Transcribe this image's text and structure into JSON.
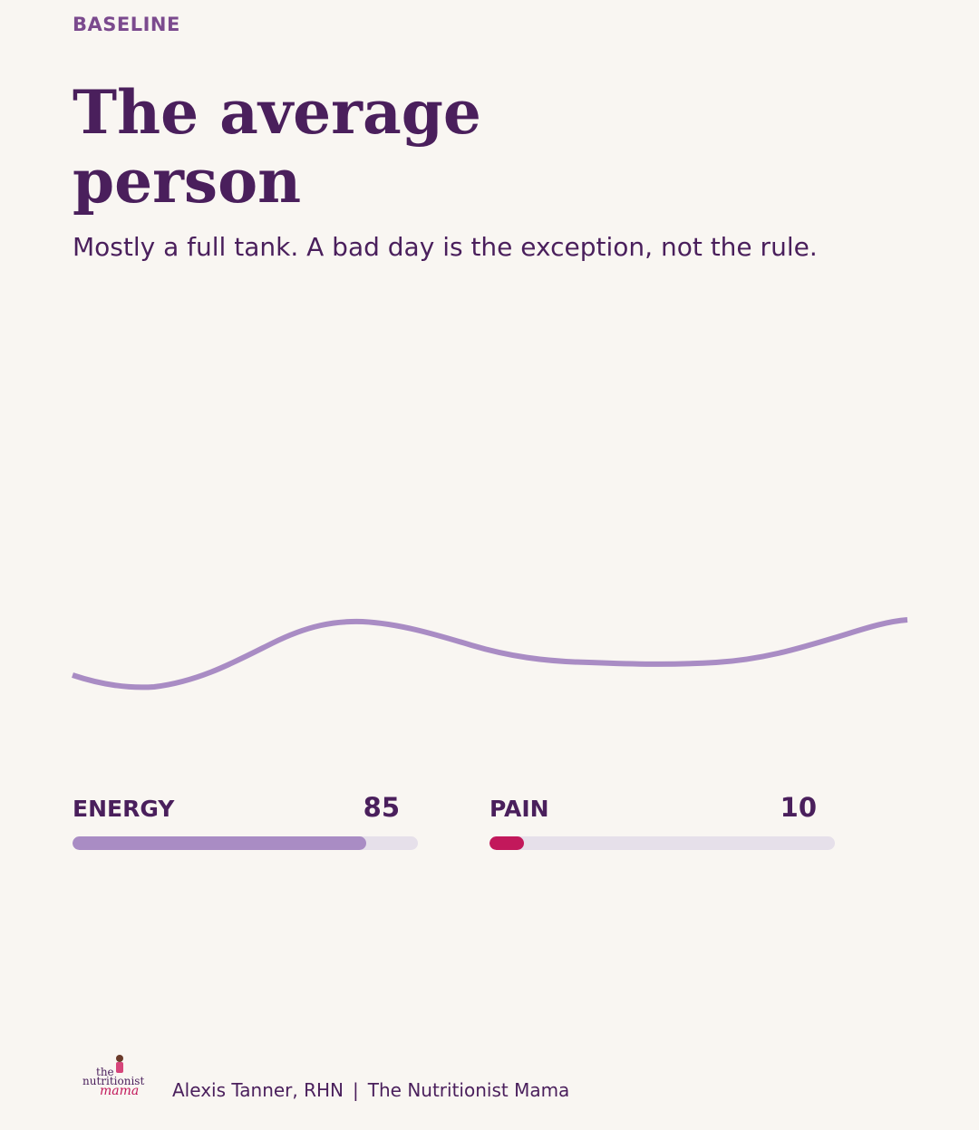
{
  "header": {
    "eyebrow": "BASELINE",
    "title": "The average person",
    "subtitle": "Mostly a full tank. A bad day is the exception, not the rule."
  },
  "metrics": {
    "energy": {
      "label": "ENERGY",
      "value": "85",
      "fraction": 0.85,
      "color": "#a98cc4"
    },
    "pain": {
      "label": "PAIN",
      "value": "10",
      "fraction": 0.1,
      "color": "#c2185b"
    }
  },
  "footer": {
    "logo_text": [
      "the",
      "nutritionist",
      "mama"
    ],
    "author": "Alexis Tanner, RHN",
    "separator": "|",
    "brand": "The Nutritionist Mama"
  },
  "colors": {
    "background": "#f9f6f2",
    "primary": "#4a1f5c",
    "accent": "#7b4a8e",
    "wave": "#a98cc4",
    "pain": "#c2185b",
    "track": "#e6e0ea"
  }
}
